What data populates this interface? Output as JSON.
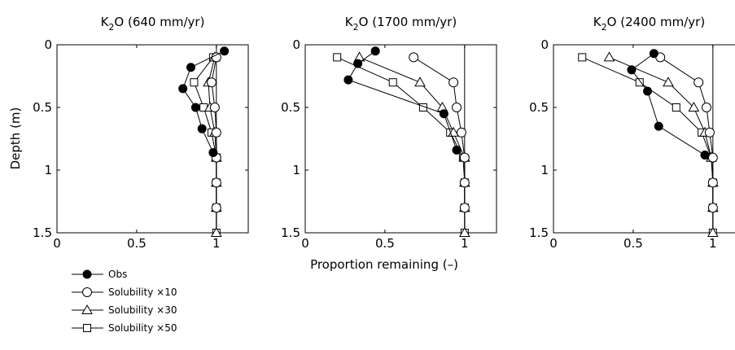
{
  "ylabel": "Depth (m)",
  "xlabel": "Proportion remaining (–)",
  "legend": [
    {
      "label": "Obs",
      "marker": "filled-circle"
    },
    {
      "label": "Solubility ×10",
      "marker": "open-circle"
    },
    {
      "label": "Solubility ×30",
      "marker": "open-triangle"
    },
    {
      "label": "Solubility ×50",
      "marker": "open-square"
    }
  ],
  "chart_data": [
    {
      "type": "line",
      "title_main": "K",
      "title_sub": "2",
      "title_rest": "O (640 mm/yr)",
      "xlim": [
        0,
        1.2
      ],
      "ylim": [
        0,
        1.5
      ],
      "y_inverted": true,
      "x_ticks": [
        0,
        0.5,
        1
      ],
      "x_tick_labels": [
        "0",
        "0.5",
        "1"
      ],
      "y_ticks": [
        0,
        0.5,
        1,
        1.5
      ],
      "y_tick_labels": [
        "0",
        "0.5",
        "1",
        "1.5"
      ],
      "reference_line_x": 1,
      "series": [
        {
          "name": "Obs",
          "marker": "filled-circle",
          "x": [
            1.05,
            0.84,
            0.79,
            0.87,
            0.91,
            0.98
          ],
          "y": [
            0.05,
            0.18,
            0.35,
            0.5,
            0.67,
            0.86
          ]
        },
        {
          "name": "Solubility ×10",
          "marker": "open-circle",
          "x": [
            1.0,
            0.97,
            0.99,
            1.0,
            1.0,
            1.0,
            1.0
          ],
          "y": [
            0.1,
            0.3,
            0.5,
            0.7,
            0.9,
            1.1,
            1.3
          ]
        },
        {
          "name": "Solubility ×30",
          "marker": "open-triangle",
          "x": [
            0.99,
            0.95,
            0.96,
            0.99,
            1.0,
            1.0,
            1.0,
            1.0
          ],
          "y": [
            0.1,
            0.3,
            0.5,
            0.7,
            0.9,
            1.1,
            1.3,
            1.5
          ]
        },
        {
          "name": "Solubility ×50",
          "marker": "open-square",
          "x": [
            0.98,
            0.86,
            0.92,
            0.97,
            1.0,
            1.0,
            1.0,
            1.0
          ],
          "y": [
            0.1,
            0.3,
            0.5,
            0.7,
            0.9,
            1.1,
            1.3,
            1.5
          ]
        }
      ]
    },
    {
      "type": "line",
      "title_main": "K",
      "title_sub": "2",
      "title_rest": "O (1700 mm/yr)",
      "xlim": [
        0,
        1.2
      ],
      "ylim": [
        0,
        1.5
      ],
      "y_inverted": true,
      "x_ticks": [
        0,
        0.5,
        1
      ],
      "x_tick_labels": [
        "0",
        "0.5",
        "1"
      ],
      "y_ticks": [
        0,
        0.5,
        1,
        1.5
      ],
      "y_tick_labels": [
        "0",
        "0.5",
        "1",
        "1.5"
      ],
      "reference_line_x": 1,
      "series": [
        {
          "name": "Obs",
          "marker": "filled-circle",
          "x": [
            0.44,
            0.33,
            0.27,
            0.87,
            0.95
          ],
          "y": [
            0.05,
            0.15,
            0.28,
            0.55,
            0.84
          ]
        },
        {
          "name": "Solubility ×10",
          "marker": "open-circle",
          "x": [
            0.68,
            0.93,
            0.95,
            0.98,
            1.0,
            1.0,
            1.0
          ],
          "y": [
            0.1,
            0.3,
            0.5,
            0.7,
            0.9,
            1.1,
            1.3
          ]
        },
        {
          "name": "Solubility ×30",
          "marker": "open-triangle",
          "x": [
            0.34,
            0.72,
            0.86,
            0.93,
            1.0,
            1.0,
            1.0,
            1.0
          ],
          "y": [
            0.1,
            0.3,
            0.5,
            0.7,
            0.9,
            1.1,
            1.3,
            1.5
          ]
        },
        {
          "name": "Solubility ×50",
          "marker": "open-square",
          "x": [
            0.2,
            0.55,
            0.74,
            0.91,
            0.99,
            1.0,
            1.0,
            1.0
          ],
          "y": [
            0.1,
            0.3,
            0.5,
            0.7,
            0.9,
            1.1,
            1.3,
            1.5
          ]
        }
      ]
    },
    {
      "type": "line",
      "title_main": "K",
      "title_sub": "2",
      "title_rest": "O (2400 mm/yr)",
      "xlim": [
        0,
        1.2
      ],
      "ylim": [
        0,
        1.5
      ],
      "y_inverted": true,
      "x_ticks": [
        0,
        0.5,
        1
      ],
      "x_tick_labels": [
        "0",
        "0.5",
        "1"
      ],
      "y_ticks": [
        0,
        0.5,
        1,
        1.5
      ],
      "y_tick_labels": [
        "0",
        "0.5",
        "1",
        "1.5"
      ],
      "reference_line_x": 1,
      "series": [
        {
          "name": "Obs",
          "marker": "filled-circle",
          "x": [
            0.63,
            0.49,
            0.59,
            0.66,
            0.95
          ],
          "y": [
            0.07,
            0.2,
            0.37,
            0.65,
            0.88
          ]
        },
        {
          "name": "Solubility ×10",
          "marker": "open-circle",
          "x": [
            0.67,
            0.91,
            0.96,
            0.98,
            1.0,
            1.0,
            1.0
          ],
          "y": [
            0.1,
            0.3,
            0.5,
            0.7,
            0.9,
            1.1,
            1.3
          ]
        },
        {
          "name": "Solubility ×30",
          "marker": "open-triangle",
          "x": [
            0.35,
            0.72,
            0.88,
            0.95,
            0.99,
            1.0,
            1.0,
            1.0
          ],
          "y": [
            0.1,
            0.3,
            0.5,
            0.7,
            0.9,
            1.1,
            1.3,
            1.5
          ]
        },
        {
          "name": "Solubility ×50",
          "marker": "open-square",
          "x": [
            0.18,
            0.54,
            0.77,
            0.93,
            0.99,
            1.0,
            1.0,
            1.0
          ],
          "y": [
            0.1,
            0.3,
            0.5,
            0.7,
            0.9,
            1.1,
            1.3,
            1.5
          ]
        }
      ]
    }
  ]
}
